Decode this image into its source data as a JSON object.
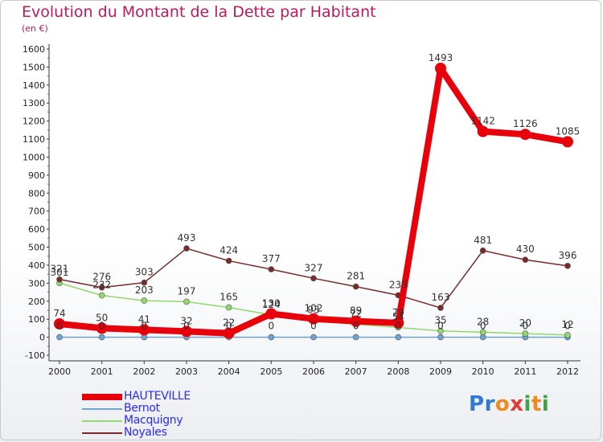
{
  "title": "Evolution du Montant de la Dette par Habitant",
  "subtitle": "(en €)",
  "logo": {
    "text": "Proxiti",
    "letters": [
      "P",
      "r",
      "o",
      "x",
      "i",
      "t",
      "i"
    ],
    "colors": [
      "#2e7bd1",
      "#2e7bd1",
      "#f08a1c",
      "#e53935",
      "#43a047",
      "#f08a1c",
      "#43a047"
    ]
  },
  "colors": {
    "title": "#c2185b",
    "legend_text": "#2a2aff",
    "axis": "#333333",
    "tick_minor": "#d32f2f"
  },
  "chart_data": {
    "type": "line",
    "categories": [
      "2000",
      "2001",
      "2002",
      "2003",
      "2004",
      "2005",
      "2006",
      "2007",
      "2008",
      "2009",
      "2010",
      "2011",
      "2012"
    ],
    "ylim": [
      -100,
      1600
    ],
    "yticks": [
      -100,
      0,
      100,
      200,
      300,
      400,
      500,
      600,
      700,
      800,
      900,
      1000,
      1100,
      1200,
      1300,
      1400,
      1500,
      1600
    ],
    "grid": false,
    "legend_position": "bottom-left",
    "series": [
      {
        "name": "HAUTEVILLE",
        "color": "#e8000a",
        "width": 8,
        "marker": 7,
        "values": [
          74,
          50,
          41,
          32,
          22,
          130,
          102,
          89,
          79,
          1493,
          1142,
          1126,
          1085
        ],
        "labels": [
          "74",
          "50",
          "41",
          "32",
          "22",
          "130",
          "102",
          "89",
          "79",
          "1493",
          "1142",
          "1126",
          "1085"
        ]
      },
      {
        "name": "Bernot",
        "color": "#6fa3cf",
        "width": 1.5,
        "marker": 3.5,
        "values": [
          0,
          0,
          0,
          0,
          0,
          0,
          0,
          0,
          0,
          0,
          0,
          0,
          0
        ],
        "labels": [
          "0",
          "0",
          "0",
          "0",
          "0",
          "0",
          "0",
          "0",
          "0",
          "0",
          "0",
          "0",
          "0"
        ]
      },
      {
        "name": "Macquigny",
        "color": "#92d86a",
        "width": 1.5,
        "marker": 3.5,
        "values": [
          301,
          232,
          203,
          197,
          165,
          124,
          93,
          72,
          54,
          35,
          28,
          20,
          12
        ],
        "labels": [
          "301",
          "232",
          "203",
          "197",
          "165",
          "124",
          "93",
          "72",
          "54",
          "35",
          "28",
          "20",
          "12"
        ]
      },
      {
        "name": "Noyales",
        "color": "#7a2a2a",
        "width": 1.5,
        "marker": 3.5,
        "values": [
          321,
          276,
          303,
          493,
          424,
          377,
          327,
          281,
          233,
          163,
          481,
          430,
          396
        ],
        "labels": [
          "321",
          "276",
          "303",
          "493",
          "424",
          "377",
          "327",
          "281",
          "233",
          "163",
          "481",
          "430",
          "396"
        ]
      }
    ]
  }
}
